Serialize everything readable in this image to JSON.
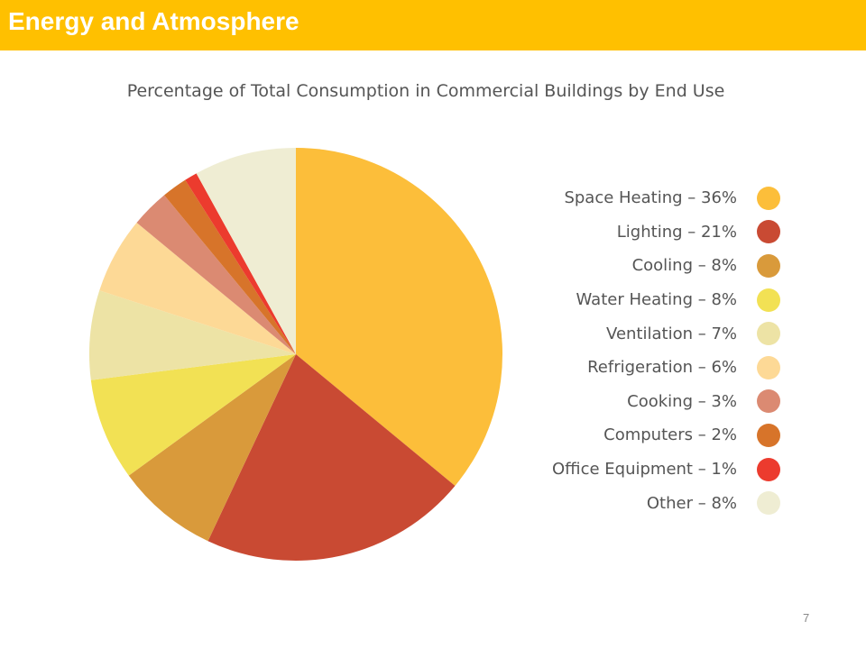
{
  "header": {
    "title": "Energy and Atmosphere"
  },
  "page_number": "7",
  "chart_data": {
    "type": "pie",
    "title": "Percentage of Total Consumption in Commercial Buildings by End Use",
    "legend_placement": "right",
    "slices": [
      {
        "label": "Space Heating – 36%",
        "name": "Space Heating",
        "value": 36,
        "color": "#FCBE3A"
      },
      {
        "label": "Lighting – 21%",
        "name": "Lighting",
        "value": 21,
        "color": "#C94A33"
      },
      {
        "label": "Cooling – 8%",
        "name": "Cooling",
        "value": 8,
        "color": "#D99A3B"
      },
      {
        "label": "Water Heating – 8%",
        "name": "Water Heating",
        "value": 8,
        "color": "#F2E154"
      },
      {
        "label": "Ventilation – 7%",
        "name": "Ventilation",
        "value": 7,
        "color": "#EDE3A5"
      },
      {
        "label": "Refrigeration – 6%",
        "name": "Refrigeration",
        "value": 6,
        "color": "#FDD996"
      },
      {
        "label": "Cooking – 3%",
        "name": "Cooking",
        "value": 3,
        "color": "#DB8A72"
      },
      {
        "label": "Computers – 2%",
        "name": "Computers",
        "value": 2,
        "color": "#D7742A"
      },
      {
        "label": "Office Equipment – 1%",
        "name": "Office Equipment",
        "value": 1,
        "color": "#EC3B2E"
      },
      {
        "label": "Other – 8%",
        "name": "Other",
        "value": 8,
        "color": "#EFEDD3"
      }
    ]
  }
}
